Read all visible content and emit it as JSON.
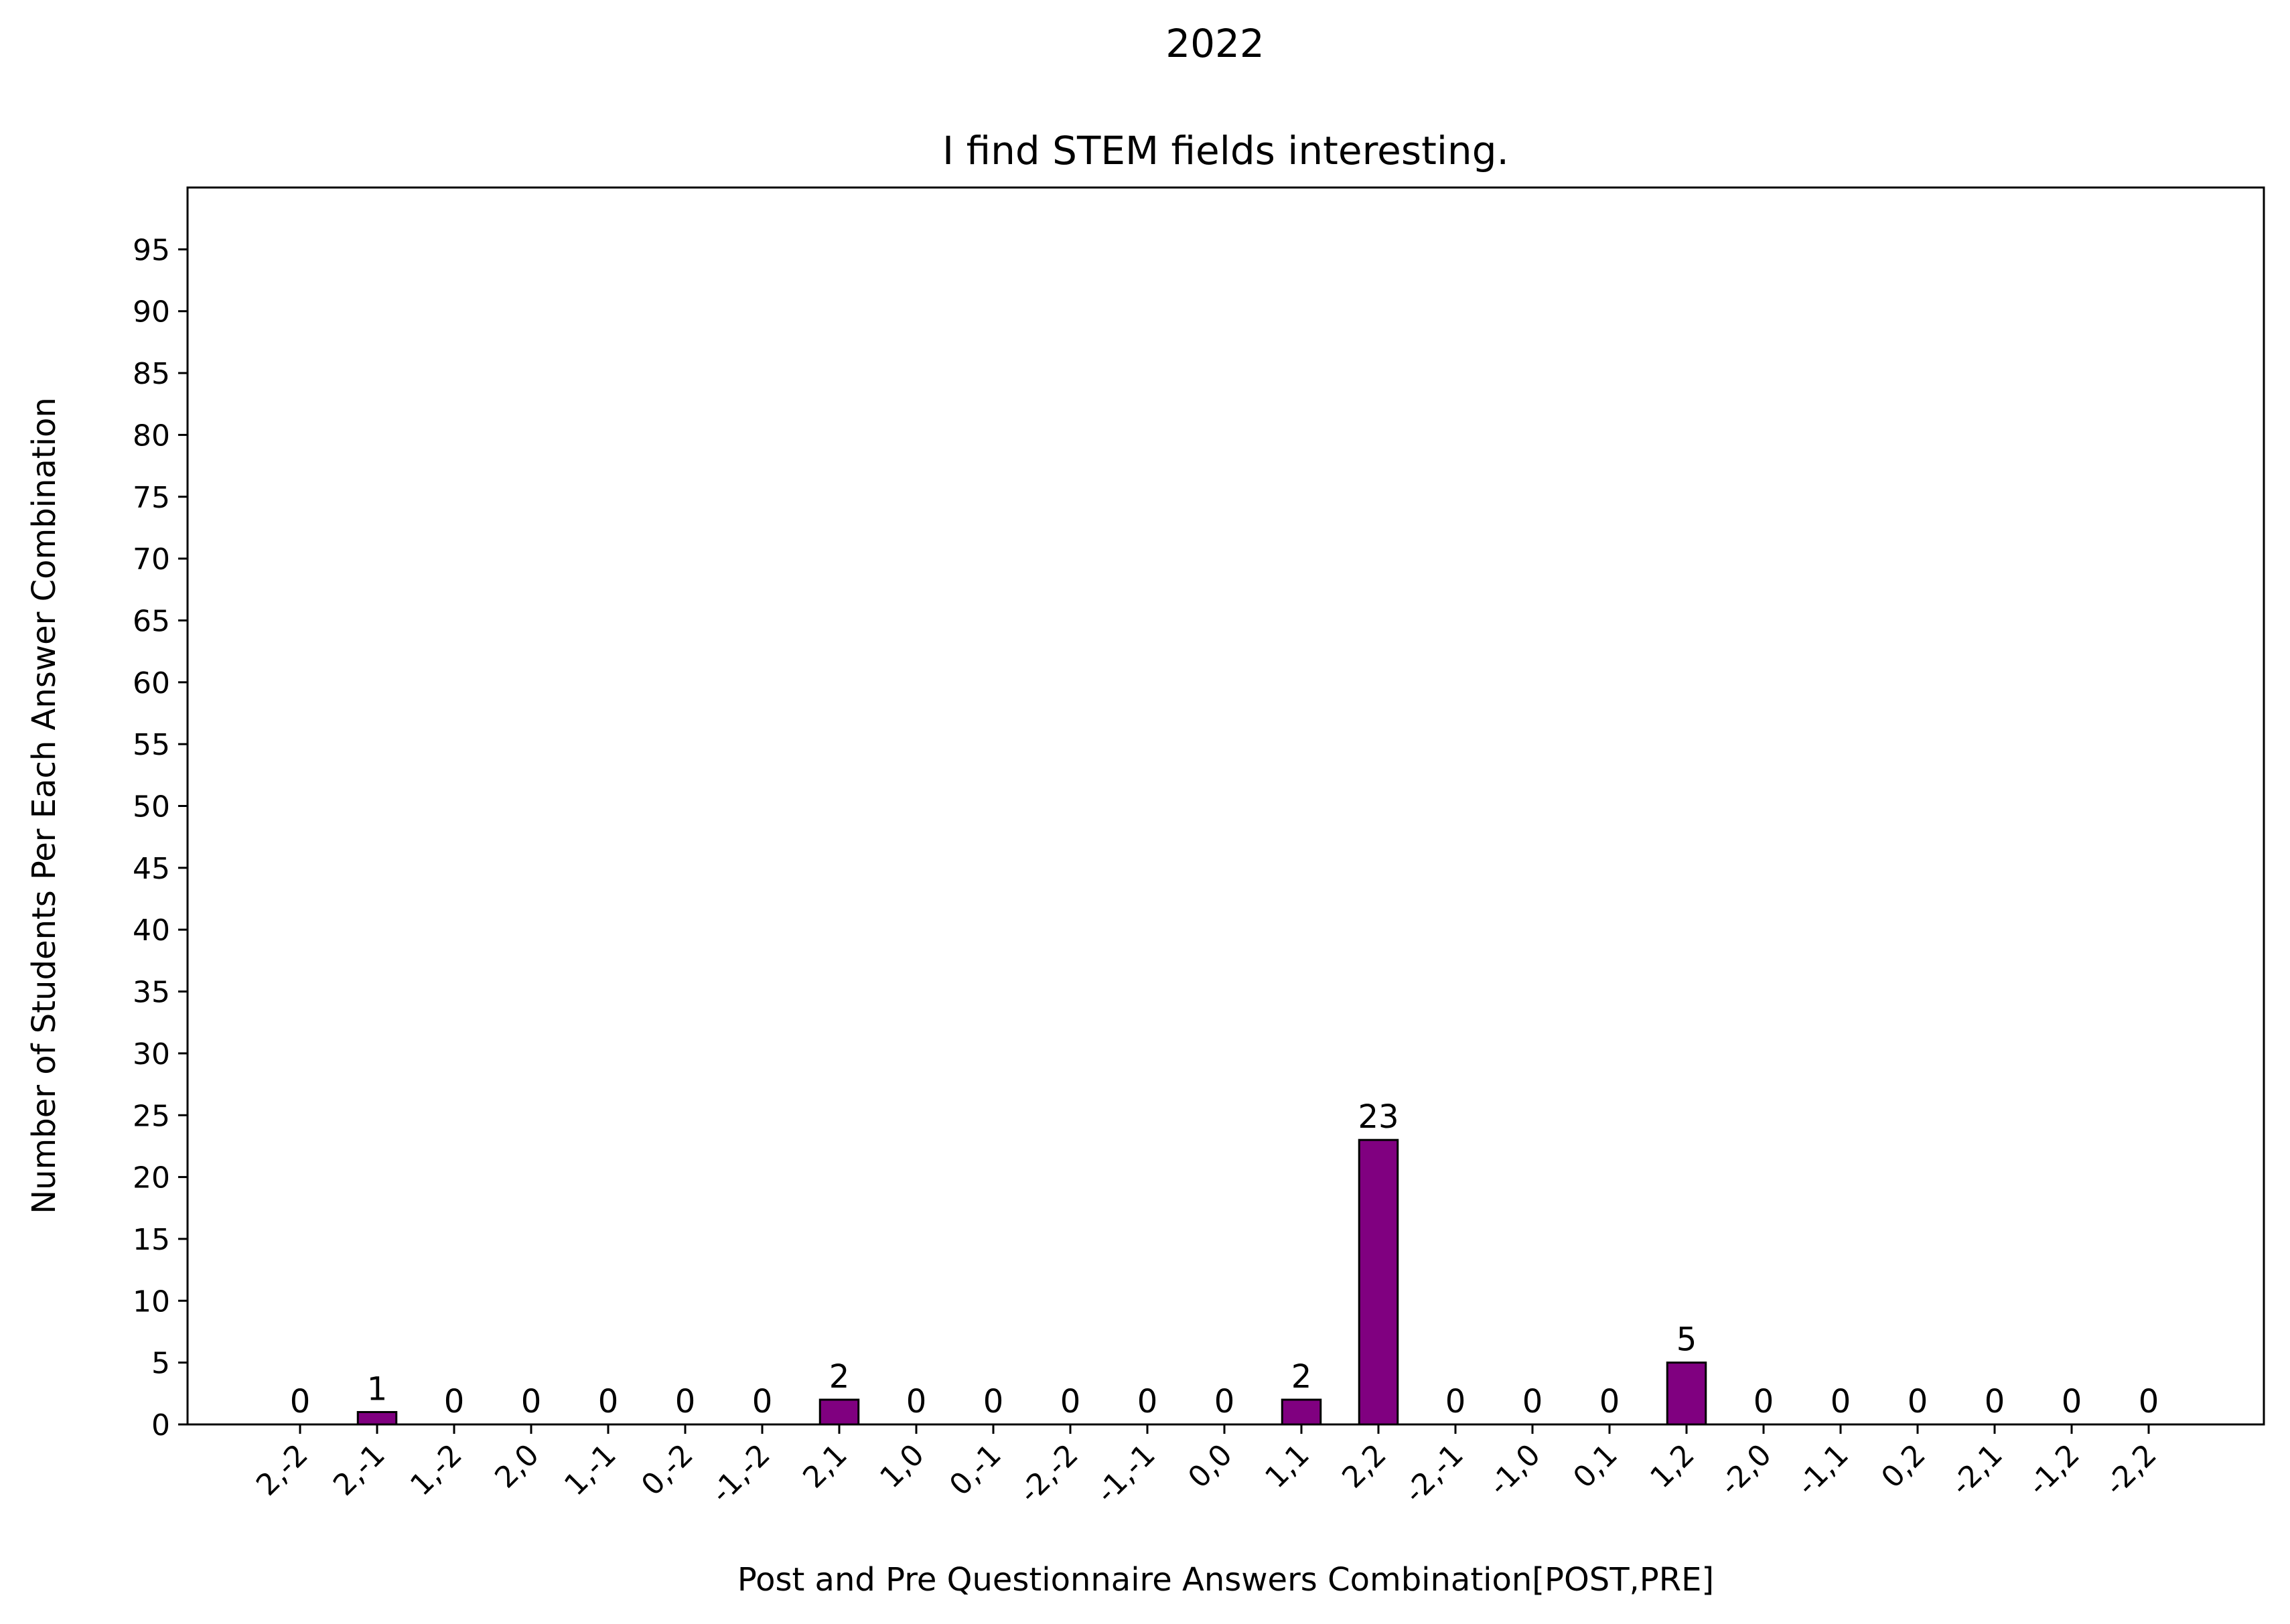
{
  "chart_data": {
    "type": "bar",
    "suptitle": "2022",
    "title": "I find STEM fields interesting.",
    "xlabel": "Post and Pre Questionnaire Answers Combination[POST,PRE]",
    "ylabel": "Number of Students Per Each Answer Combination",
    "categories": [
      "2,-2",
      "2,-1",
      "1,-2",
      "2,0",
      "1,-1",
      "0,-2",
      "-1,-2",
      "2,1",
      "1,0",
      "0,-1",
      "-2,-2",
      "-1,-1",
      "0,0",
      "1,1",
      "2,2",
      "-2,-1",
      "-1,0",
      "0,1",
      "1,2",
      "-2,0",
      "-1,1",
      "0,2",
      "-2,1",
      "-1,2",
      "-2,2"
    ],
    "values": [
      0,
      1,
      0,
      0,
      0,
      0,
      0,
      2,
      0,
      0,
      0,
      0,
      0,
      2,
      23,
      0,
      0,
      0,
      5,
      0,
      0,
      0,
      0,
      0,
      0
    ],
    "ylim": [
      0,
      100
    ],
    "yticks": [
      0,
      5,
      10,
      15,
      20,
      25,
      30,
      35,
      40,
      45,
      50,
      55,
      60,
      65,
      70,
      75,
      80,
      85,
      90,
      95
    ],
    "bar_color": "#800080",
    "bar_edge_color": "#000000",
    "grid": false,
    "data_labels": true
  }
}
